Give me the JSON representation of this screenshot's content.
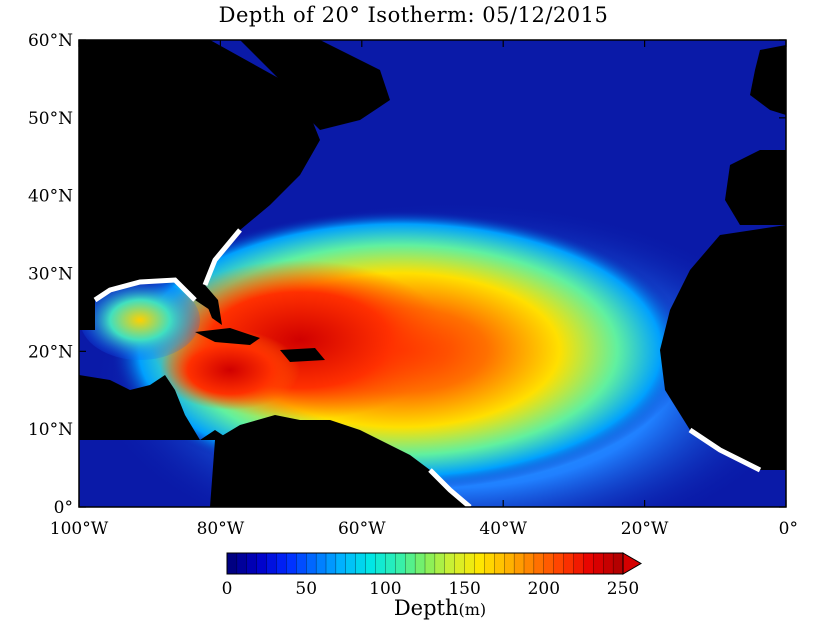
{
  "title": "Depth of 20° Isotherm: 05/12/2015",
  "map": {
    "lon_range": [
      -100,
      0
    ],
    "lat_range": [
      0,
      60
    ],
    "x_ticks": [
      {
        "value": -100,
        "label": "100°W"
      },
      {
        "value": -80,
        "label": "80°W"
      },
      {
        "value": -60,
        "label": "60°W"
      },
      {
        "value": -40,
        "label": "40°W"
      },
      {
        "value": -20,
        "label": "20°W"
      },
      {
        "value": 0,
        "label": "0°"
      }
    ],
    "y_ticks": [
      {
        "value": 0,
        "label": "0°"
      },
      {
        "value": 10,
        "label": "10°N"
      },
      {
        "value": 20,
        "label": "20°N"
      },
      {
        "value": 30,
        "label": "30°N"
      },
      {
        "value": 40,
        "label": "40°N"
      },
      {
        "value": 50,
        "label": "50°N"
      },
      {
        "value": 60,
        "label": "60°N"
      }
    ],
    "ocean_deep_color": "#0a1aa8",
    "land_color": "#000000"
  },
  "colorbar": {
    "range": [
      0,
      250
    ],
    "ticks": [
      {
        "value": 0,
        "label": "0"
      },
      {
        "value": 50,
        "label": "50"
      },
      {
        "value": 100,
        "label": "100"
      },
      {
        "value": 150,
        "label": "150"
      },
      {
        "value": 200,
        "label": "200"
      },
      {
        "value": 250,
        "label": "250"
      }
    ],
    "label": "Depth",
    "unit": "(m)",
    "colors": [
      "#000082",
      "#0000c8",
      "#0028ff",
      "#0070ff",
      "#00b4ff",
      "#00e6e6",
      "#30f0b0",
      "#80f060",
      "#d0f030",
      "#ffe600",
      "#ffb400",
      "#ff7800",
      "#ff3c00",
      "#e60000",
      "#b40000"
    ]
  }
}
